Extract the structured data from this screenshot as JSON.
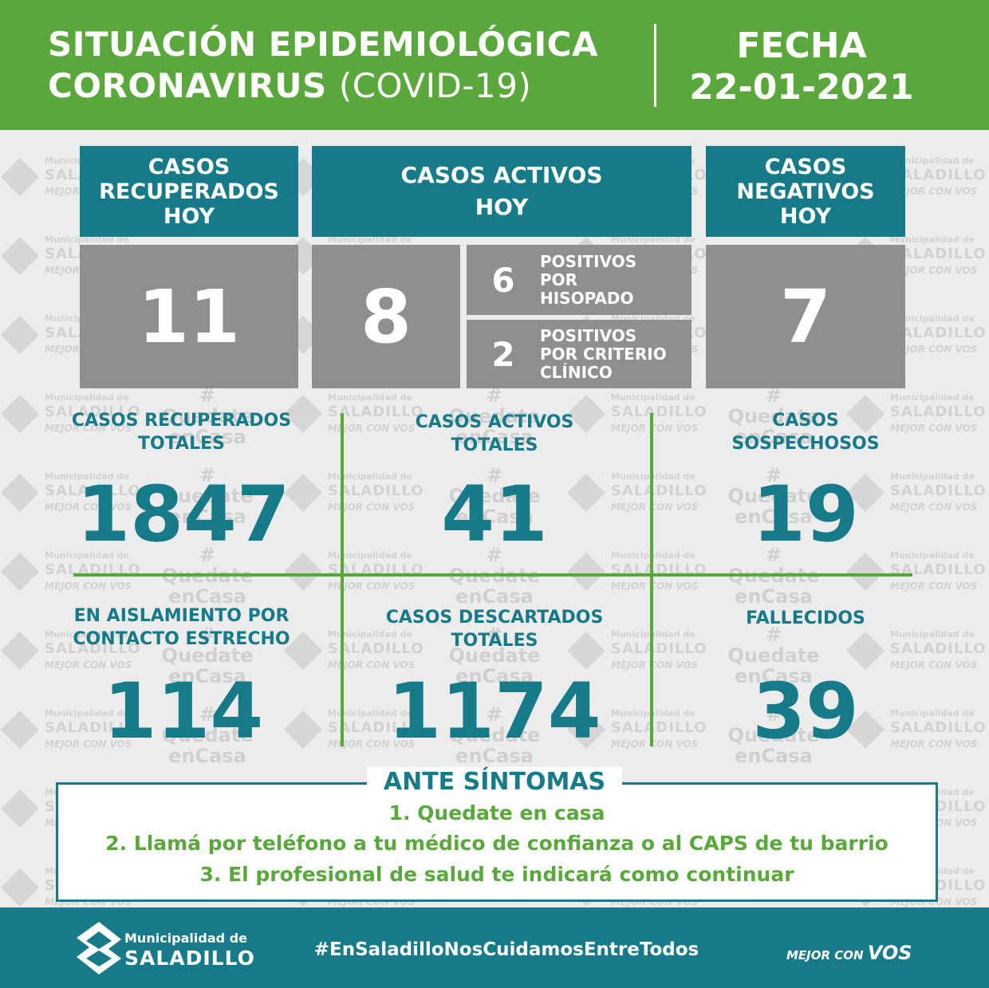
{
  "header": {
    "title_line1": "SITUACIÓN EPIDEMIOLÓGICA",
    "title_line2_bold": "CORONAVIRUS",
    "title_line2_light": "(COVID-19)",
    "date_label": "FECHA",
    "date_value": "22-01-2021"
  },
  "watermark": {
    "line1": "Municipalidad de",
    "line2": "SALADILLO",
    "line3": "MEJOR CON VOS",
    "tag1": "#",
    "tag2": "Quedate",
    "tag3": "enCasa"
  },
  "top_boxes": {
    "recovered_today": {
      "label_l1": "CASOS",
      "label_l2": "RECUPERADOS",
      "label_l3": "HOY",
      "value": "11"
    },
    "active_today": {
      "label_l1": "CASOS ACTIVOS",
      "label_l2": "HOY",
      "value": "8",
      "swab": {
        "value": "6",
        "l1": "POSITIVOS",
        "l2": "POR",
        "l3": "HISOPADO"
      },
      "clinical": {
        "value": "2",
        "l1": "POSITIVOS",
        "l2": "POR CRITERIO",
        "l3": "CLÍNICO"
      }
    },
    "negative_today": {
      "label_l1": "CASOS",
      "label_l2": "NEGATIVOS",
      "label_l3": "HOY",
      "value": "7"
    }
  },
  "stats": {
    "recovered_total": {
      "l1": "CASOS RECUPERADOS",
      "l2": "TOTALES",
      "value": "1847"
    },
    "active_total": {
      "l1": "CASOS ACTIVOS",
      "l2": "TOTALES",
      "value": "41"
    },
    "suspected": {
      "l1": "CASOS",
      "l2": "SOSPECHOSOS",
      "value": "19"
    },
    "isolation": {
      "l1": "EN AISLAMIENTO POR",
      "l2": "CONTACTO ESTRECHO",
      "value": "114"
    },
    "discarded_total": {
      "l1": "CASOS DESCARTADOS",
      "l2": "TOTALES",
      "value": "1174"
    },
    "deceased": {
      "l1": "FALLECIDOS",
      "l2": "",
      "value": "39"
    }
  },
  "symptoms": {
    "title": "ANTE SÍNTOMAS",
    "line1": "1. Quedate en casa",
    "line2": "2. Llamá por teléfono a tu médico de confianza o al CAPS de tu barrio",
    "line3": "3. El profesional de salud te indicará como continuar"
  },
  "footer": {
    "logo_l1": "Municipalidad de",
    "logo_l2": "SALADILLO",
    "hashtag": "#EnSaladilloNosCuidamosEntreTodos",
    "slogan_l1": "MEJOR CON",
    "slogan_l2": "VOS"
  },
  "colors": {
    "green": "#5aa83c",
    "teal": "#167a89",
    "grey": "#8f8f8f"
  }
}
